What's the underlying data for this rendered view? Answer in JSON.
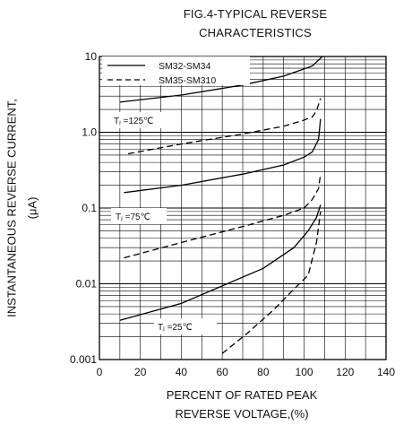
{
  "chart_data": {
    "type": "line",
    "title": "FIG.4-TYPICAL REVERSE",
    "subtitle": "CHARACTERISTICS",
    "xlabel_line1": "PERCENT OF RATED PEAK",
    "xlabel_line2": "REVERSE VOLTAGE,(%)",
    "ylabel_line1": "INSTANTANEOUS REVERSE CURRENT,",
    "ylabel_line2": "(μA)",
    "xlim": [
      0,
      140
    ],
    "ylim": [
      0.001,
      10
    ],
    "yscale": "log",
    "grid": true,
    "legend_position": "top-left",
    "x_ticks": [
      "0",
      "20",
      "40",
      "60",
      "80",
      "100",
      "120",
      "140"
    ],
    "y_ticks": [
      "0.001",
      "0.01",
      "0.1",
      "1.0",
      "10"
    ],
    "legend": [
      {
        "label": "SM32-SM34",
        "style": "solid"
      },
      {
        "label": "SM35-SM310",
        "style": "dashed"
      }
    ],
    "annotations": [
      "Tⱼ =125℃",
      "Tⱼ =75℃",
      "Tⱼ =25℃"
    ],
    "series": [
      {
        "group": "SM32-SM34",
        "temp": "125",
        "style": "solid",
        "x": [
          10,
          40,
          70,
          90,
          104,
          108,
          109
        ],
        "y": [
          2.5,
          3.1,
          4.2,
          5.5,
          7.5,
          9.5,
          10
        ]
      },
      {
        "group": "SM35-SM310",
        "temp": "125",
        "style": "dashed",
        "x": [
          14,
          40,
          70,
          90,
          100,
          104,
          106,
          108
        ],
        "y": [
          0.52,
          0.7,
          0.95,
          1.2,
          1.45,
          1.6,
          1.9,
          2.8
        ]
      },
      {
        "group": "SM32-SM34",
        "temp": "75",
        "style": "solid",
        "x": [
          12,
          40,
          70,
          90,
          100,
          104,
          107,
          108
        ],
        "y": [
          0.16,
          0.2,
          0.28,
          0.37,
          0.47,
          0.55,
          0.8,
          1.5
        ]
      },
      {
        "group": "SM35-SM310",
        "temp": "75",
        "style": "dashed",
        "x": [
          12,
          40,
          70,
          90,
          100,
          104,
          107,
          108
        ],
        "y": [
          0.022,
          0.035,
          0.057,
          0.08,
          0.1,
          0.13,
          0.18,
          0.28
        ]
      },
      {
        "group": "SM32-SM34",
        "temp": "25",
        "style": "solid",
        "x": [
          10,
          40,
          80,
          95,
          102,
          106,
          108
        ],
        "y": [
          0.0033,
          0.0055,
          0.016,
          0.03,
          0.05,
          0.075,
          0.11
        ]
      },
      {
        "group": "SM35-SM310",
        "temp": "25",
        "style": "dashed",
        "x": [
          60,
          72,
          85,
          95,
          102,
          106,
          108
        ],
        "y": [
          0.0012,
          0.0022,
          0.0045,
          0.0085,
          0.013,
          0.035,
          0.09
        ]
      }
    ]
  }
}
